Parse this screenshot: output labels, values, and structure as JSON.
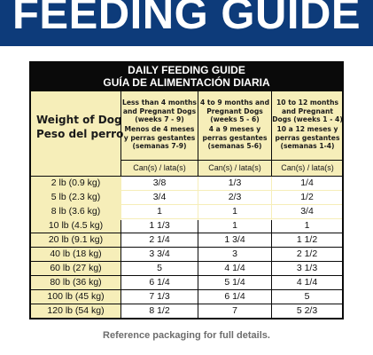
{
  "banner": {
    "title": "FEEDING GUIDE",
    "background": "#0d3b7a"
  },
  "table": {
    "title_en": "DAILY FEEDING GUIDE",
    "title_es": "GUÍA DE ALIMENTACIÓN DIARIA",
    "weight_header_en": "Weight of Dog",
    "weight_header_es": "Peso del perro",
    "columns": [
      {
        "en": "Less than 4 months and Pregnant Dogs (weeks 7 - 9)",
        "es": "Menos de 4 meses y perras gestantes (semanas 7-9)",
        "unit": "Can(s) / lata(s)"
      },
      {
        "en": "4 to 9 months and Pregnant Dogs (weeks 5 - 6)",
        "es": "4 a 9 meses y perras gestantes (semanas 5-6)",
        "unit": "Can(s) / lata(s)"
      },
      {
        "en": "10 to 12 months and Pregnant Dogs (weeks 1 - 4)",
        "es": "10 a 12 meses y perras gestantes (semanas 1-4)",
        "unit": "Can(s) / lata(s)"
      }
    ],
    "rows": [
      {
        "weight": "2 lb (0.9 kg)",
        "values": [
          "3/8",
          "1/3",
          "1/4"
        ]
      },
      {
        "weight": "5 lb (2.3 kg)",
        "values": [
          "3/4",
          "2/3",
          "1/2"
        ]
      },
      {
        "weight": "8 lb (3.6 kg)",
        "values": [
          "1",
          "1",
          "3/4"
        ]
      },
      {
        "weight": "10 lb (4.5 kg)",
        "values": [
          "1 1/3",
          "1",
          "1"
        ]
      },
      {
        "weight": "20 lb (9.1 kg)",
        "values": [
          "2 1/4",
          "1 3/4",
          "1 1/2"
        ]
      },
      {
        "weight": "40 lb (18 kg)",
        "values": [
          "3 3/4",
          "3",
          "2 1/2"
        ]
      },
      {
        "weight": "60 lb (27 kg)",
        "values": [
          "5",
          "4 1/4",
          "3 1/3"
        ]
      },
      {
        "weight": "80 lb (36 kg)",
        "values": [
          "6 1/4",
          "5 1/4",
          "4 1/4"
        ]
      },
      {
        "weight": "100 lb (45 kg)",
        "values": [
          "7 1/3",
          "6 1/4",
          "5"
        ]
      },
      {
        "weight": "120 lb (54 kg)",
        "values": [
          "8 1/2",
          "7",
          "5 2/3"
        ]
      }
    ]
  },
  "footer": {
    "text": "Reference packaging for full details."
  }
}
